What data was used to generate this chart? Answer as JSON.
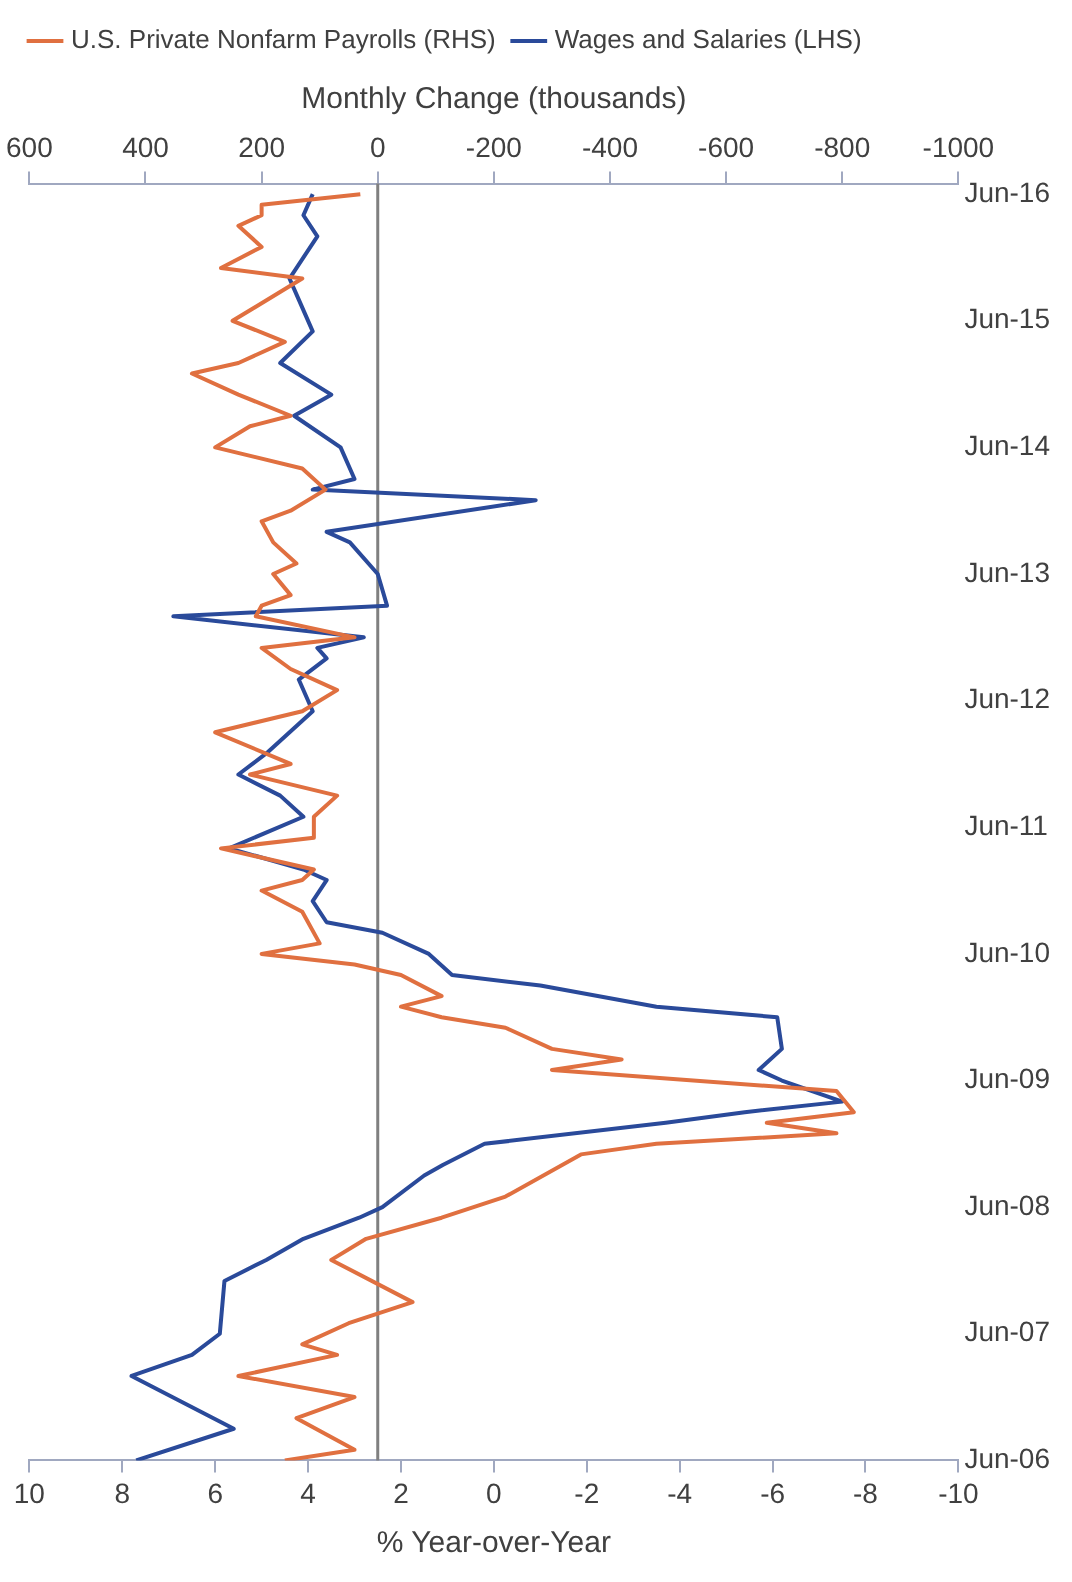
{
  "chart_data": {
    "type": "line",
    "orientation": "horizontal",
    "xlabel": "% Year-over-Year",
    "x2label": "Monthly Change (thousands)",
    "legend": "top",
    "grid": false,
    "marker": "none",
    "line_style": "solid",
    "ylim": [
      "2006-06",
      "2016-07"
    ],
    "yticks": [
      {
        "value": "2006-06",
        "label": "Jun-06"
      },
      {
        "value": "2007-06",
        "label": "Jun-07"
      },
      {
        "value": "2008-06",
        "label": "Jun-08"
      },
      {
        "value": "2009-06",
        "label": "Jun-09"
      },
      {
        "value": "2010-06",
        "label": "Jun-10"
      },
      {
        "value": "2011-06",
        "label": "Jun-11"
      },
      {
        "value": "2012-06",
        "label": "Jun-12"
      },
      {
        "value": "2013-06",
        "label": "Jun-13"
      },
      {
        "value": "2014-06",
        "label": "Jun-14"
      },
      {
        "value": "2015-06",
        "label": "Jun-15"
      },
      {
        "value": "2016-06",
        "label": "Jun-16"
      }
    ],
    "xlim": [
      10,
      -10
    ],
    "xticks": [
      10,
      8,
      6,
      4,
      2,
      0,
      -2,
      -4,
      -6,
      -8,
      -10
    ],
    "x2lim": [
      600,
      -1000
    ],
    "x2ticks": [
      600,
      400,
      200,
      0,
      -200,
      -400,
      -600,
      -800,
      -1000
    ],
    "ref_lines": [
      {
        "axis": "x2",
        "value": 0,
        "color": "#808080"
      }
    ],
    "series": [
      {
        "name": "U.S. Private Nonfarm Payrolls (RHS)",
        "color": "#e07040",
        "axis": "x2",
        "x": [
          "2006-06",
          "2006-07",
          "2006-10",
          "2006-12",
          "2007-02",
          "2007-04",
          "2007-05",
          "2007-07",
          "2007-09",
          "2008-01",
          "2008-03",
          "2008-05",
          "2008-07",
          "2008-11",
          "2008-12",
          "2009-01",
          "2009-02",
          "2009-03",
          "2009-05",
          "2009-07",
          "2009-08",
          "2009-09",
          "2009-11",
          "2009-12",
          "2010-01",
          "2010-02",
          "2010-04",
          "2010-05",
          "2010-06",
          "2010-07",
          "2010-10",
          "2010-12",
          "2011-01",
          "2011-02",
          "2011-04",
          "2011-05",
          "2011-07",
          "2011-09",
          "2011-11",
          "2011-12",
          "2012-03",
          "2012-05",
          "2012-07",
          "2012-09",
          "2012-11",
          "2012-12",
          "2013-02",
          "2013-03",
          "2013-04",
          "2013-06",
          "2013-07",
          "2013-09",
          "2013-11",
          "2013-12",
          "2014-02",
          "2014-04",
          "2014-06",
          "2014-08",
          "2014-09",
          "2014-11",
          "2015-01",
          "2015-02",
          "2015-04",
          "2015-06",
          "2015-10",
          "2015-11",
          "2016-01",
          "2016-03",
          "2016-04",
          "2016-05",
          "2016-06"
        ],
        "values": [
          160,
          40,
          140,
          40,
          240,
          70,
          130,
          50,
          -60,
          80,
          20,
          -110,
          -220,
          -350,
          -480,
          -790,
          -670,
          -820,
          -790,
          -300,
          -420,
          -300,
          -220,
          -110,
          -40,
          -110,
          -40,
          40,
          200,
          100,
          130,
          200,
          130,
          110,
          270,
          110,
          110,
          70,
          220,
          150,
          280,
          130,
          70,
          150,
          200,
          40,
          210,
          200,
          150,
          180,
          140,
          180,
          200,
          150,
          90,
          130,
          280,
          220,
          150,
          240,
          320,
          240,
          160,
          250,
          130,
          270,
          200,
          240,
          200,
          200,
          30
        ]
      },
      {
        "name": "Wages and Salaries (LHS)",
        "color": "#2a4a9a",
        "x": [
          "2006-06",
          "2006-09",
          "2007-02",
          "2007-04",
          "2007-06",
          "2007-11",
          "2008-01",
          "2008-03",
          "2008-05",
          "2008-06",
          "2008-09",
          "2008-10",
          "2008-12",
          "2009-02",
          "2009-03",
          "2009-04",
          "2009-06",
          "2009-07",
          "2009-09",
          "2009-12",
          "2010-01",
          "2010-03",
          "2010-04",
          "2010-06",
          "2010-08",
          "2010-09",
          "2010-11",
          "2011-01",
          "2011-02",
          "2011-04",
          "2011-07",
          "2011-09",
          "2011-11",
          "2012-01",
          "2012-05",
          "2012-08",
          "2012-10",
          "2012-11",
          "2012-12",
          "2013-02",
          "2013-03",
          "2013-06",
          "2013-09",
          "2013-10",
          "2014-01",
          "2014-02",
          "2014-03",
          "2014-06",
          "2014-09",
          "2014-11",
          "2015-02",
          "2015-05",
          "2015-08",
          "2015-10",
          "2016-02",
          "2016-04",
          "2016-06"
        ],
        "values": [
          7.7,
          5.6,
          7.8,
          6.5,
          5.9,
          5.8,
          4.9,
          4.1,
          2.9,
          2.4,
          1.5,
          1.1,
          0.2,
          -3.7,
          -5.4,
          -7.5,
          -6.2,
          -5.7,
          -6.2,
          -6.1,
          -3.5,
          -1.0,
          0.9,
          1.4,
          2.4,
          3.6,
          3.9,
          3.6,
          4.1,
          5.7,
          4.1,
          4.6,
          5.5,
          4.9,
          3.9,
          4.2,
          3.6,
          3.8,
          2.8,
          6.9,
          2.3,
          2.5,
          3.1,
          3.6,
          -0.9,
          3.9,
          3.0,
          3.3,
          4.3,
          3.5,
          4.6,
          3.9,
          4.2,
          4.4,
          3.8,
          4.1,
          3.9
        ]
      }
    ]
  }
}
